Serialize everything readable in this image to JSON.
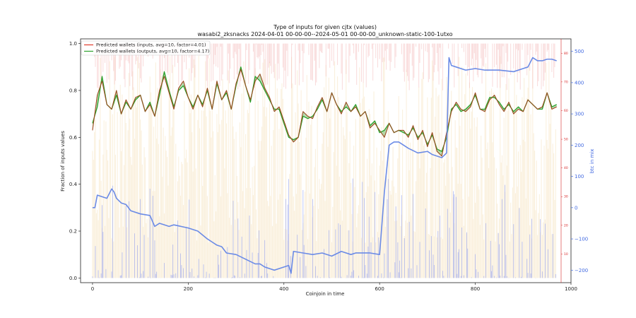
{
  "chart_data": {
    "type": "line",
    "title_line1": "Type of inputs for given cjtx (values)",
    "title_line2": "wasabi2_zksnacks 2024-04-01 00-00-00--2024-05-01 00-00-00_unknown-static-100-1utxo",
    "xlabel": "Coinjoin in time",
    "ylabel": "Fraction of inputs values",
    "y2label": "btc in mix",
    "xlim": [
      -25,
      1000
    ],
    "ylim": [
      -0.02,
      1.02
    ],
    "y2lim": [
      -240,
      540
    ],
    "x_ticks": [
      0,
      200,
      400,
      600,
      800,
      1000
    ],
    "y_ticks": [
      0.0,
      0.2,
      0.4,
      0.6,
      0.8,
      1.0
    ],
    "y2_ticks": [
      -200,
      -100,
      0,
      100,
      200,
      300,
      400,
      500
    ],
    "red_ticks": [
      10,
      20,
      30,
      40,
      50,
      60,
      70,
      80
    ],
    "grid": false,
    "legend_position": "top-left",
    "colors": {
      "inputs": "#e0392b",
      "outputs": "#2ca02c",
      "mix": "#6b8be6",
      "bars_yellow": "#f5deb3",
      "bars_red": "#f4b6b6",
      "bars_blue": "#8f9df0",
      "red_axis": "#d62728",
      "blue_axis": "#4169e1"
    },
    "series": [
      {
        "name": "Predicted wallets (inputs, avg=10, factor=4.01)",
        "x": [
          0,
          10,
          20,
          30,
          40,
          50,
          60,
          70,
          80,
          90,
          100,
          110,
          120,
          130,
          140,
          150,
          160,
          170,
          180,
          190,
          200,
          210,
          220,
          230,
          240,
          250,
          260,
          270,
          280,
          290,
          300,
          310,
          320,
          330,
          340,
          350,
          360,
          370,
          380,
          390,
          400,
          410,
          420,
          430,
          440,
          450,
          460,
          470,
          480,
          490,
          500,
          510,
          520,
          530,
          540,
          550,
          560,
          570,
          580,
          590,
          600,
          610,
          620,
          630,
          640,
          650,
          660,
          670,
          680,
          690,
          700,
          710,
          720,
          730,
          740,
          750,
          760,
          770,
          780,
          790,
          800,
          810,
          820,
          830,
          840,
          850,
          860,
          870,
          880,
          890,
          900,
          910,
          920,
          930,
          940,
          950,
          960,
          970
        ],
        "values": [
          0.63,
          0.78,
          0.84,
          0.74,
          0.72,
          0.8,
          0.7,
          0.76,
          0.72,
          0.77,
          0.78,
          0.71,
          0.74,
          0.69,
          0.8,
          0.86,
          0.79,
          0.72,
          0.81,
          0.84,
          0.77,
          0.72,
          0.78,
          0.73,
          0.81,
          0.72,
          0.84,
          0.76,
          0.8,
          0.72,
          0.83,
          0.89,
          0.82,
          0.76,
          0.84,
          0.87,
          0.81,
          0.77,
          0.71,
          0.73,
          0.67,
          0.61,
          0.58,
          0.6,
          0.71,
          0.69,
          0.68,
          0.73,
          0.77,
          0.71,
          0.79,
          0.74,
          0.7,
          0.75,
          0.71,
          0.73,
          0.69,
          0.71,
          0.64,
          0.66,
          0.63,
          0.6,
          0.66,
          0.62,
          0.63,
          0.63,
          0.6,
          0.65,
          0.59,
          0.63,
          0.56,
          0.62,
          0.54,
          0.52,
          0.62,
          0.71,
          0.75,
          0.72,
          0.71,
          0.73,
          0.79,
          0.72,
          0.71,
          0.76,
          0.78,
          0.74,
          0.71,
          0.75,
          0.7,
          0.72,
          0.71,
          0.76,
          0.74,
          0.72,
          0.73,
          0.79,
          0.72,
          0.73
        ]
      },
      {
        "name": "Predicted wallets (outputs, avg=10, factor=4.17)",
        "x": [
          0,
          10,
          20,
          30,
          40,
          50,
          60,
          70,
          80,
          90,
          100,
          110,
          120,
          130,
          140,
          150,
          160,
          170,
          180,
          190,
          200,
          210,
          220,
          230,
          240,
          250,
          260,
          270,
          280,
          290,
          300,
          310,
          320,
          330,
          340,
          350,
          360,
          370,
          380,
          390,
          400,
          410,
          420,
          430,
          440,
          450,
          460,
          470,
          480,
          490,
          500,
          510,
          520,
          530,
          540,
          550,
          560,
          570,
          580,
          590,
          600,
          610,
          620,
          630,
          640,
          650,
          660,
          670,
          680,
          690,
          700,
          710,
          720,
          730,
          740,
          750,
          760,
          770,
          780,
          790,
          800,
          810,
          820,
          830,
          840,
          850,
          860,
          870,
          880,
          890,
          900,
          910,
          920,
          930,
          940,
          950,
          960,
          970
        ],
        "values": [
          0.66,
          0.73,
          0.86,
          0.74,
          0.72,
          0.78,
          0.7,
          0.75,
          0.72,
          0.76,
          0.78,
          0.71,
          0.75,
          0.69,
          0.78,
          0.88,
          0.8,
          0.73,
          0.8,
          0.82,
          0.77,
          0.73,
          0.78,
          0.74,
          0.8,
          0.72,
          0.83,
          0.76,
          0.79,
          0.72,
          0.82,
          0.9,
          0.82,
          0.75,
          0.86,
          0.84,
          0.8,
          0.76,
          0.72,
          0.72,
          0.66,
          0.6,
          0.59,
          0.6,
          0.69,
          0.68,
          0.69,
          0.72,
          0.76,
          0.71,
          0.79,
          0.74,
          0.71,
          0.73,
          0.71,
          0.74,
          0.69,
          0.71,
          0.65,
          0.67,
          0.62,
          0.63,
          0.66,
          0.62,
          0.63,
          0.62,
          0.61,
          0.64,
          0.6,
          0.62,
          0.57,
          0.61,
          0.55,
          0.54,
          0.6,
          0.72,
          0.74,
          0.71,
          0.72,
          0.74,
          0.78,
          0.72,
          0.72,
          0.77,
          0.77,
          0.75,
          0.72,
          0.74,
          0.71,
          0.73,
          0.71,
          0.76,
          0.74,
          0.72,
          0.72,
          0.79,
          0.73,
          0.74
        ]
      },
      {
        "name": "btc in mix",
        "axis": "right",
        "x": [
          0,
          5,
          10,
          20,
          30,
          40,
          45,
          50,
          60,
          70,
          80,
          100,
          120,
          130,
          140,
          150,
          160,
          170,
          200,
          220,
          240,
          250,
          260,
          270,
          280,
          300,
          320,
          340,
          350,
          360,
          380,
          400,
          410,
          415,
          420,
          440,
          460,
          480,
          500,
          520,
          540,
          550,
          560,
          580,
          600,
          610,
          620,
          630,
          640,
          660,
          680,
          700,
          710,
          720,
          730,
          740,
          745,
          750,
          760,
          780,
          800,
          820,
          850,
          880,
          900,
          910,
          920,
          930,
          940,
          950,
          960,
          970
        ],
        "values": [
          0,
          0,
          40,
          35,
          30,
          60,
          50,
          30,
          15,
          10,
          -10,
          -20,
          -25,
          -60,
          -50,
          -55,
          -60,
          -55,
          -65,
          -75,
          -100,
          -110,
          -120,
          -125,
          -145,
          -150,
          -165,
          -180,
          -180,
          -190,
          -200,
          -190,
          -185,
          -210,
          -140,
          -145,
          -150,
          -145,
          -155,
          -140,
          -150,
          -145,
          -145,
          -145,
          -150,
          50,
          200,
          210,
          210,
          190,
          175,
          180,
          170,
          165,
          160,
          175,
          480,
          455,
          450,
          440,
          445,
          440,
          440,
          435,
          445,
          450,
          480,
          470,
          470,
          475,
          475,
          470
        ]
      }
    ],
    "annotations": {
      "bars": "dense per-coinjoin vertical bars (yellow/red) on hidden secondary scale, blue bars for mix value"
    }
  }
}
